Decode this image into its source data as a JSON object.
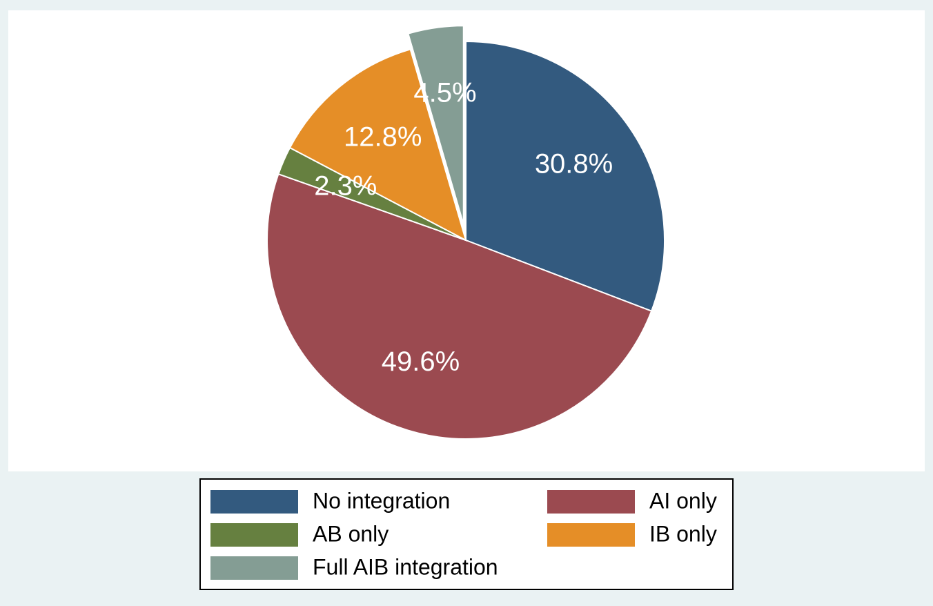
{
  "chart_data": {
    "type": "pie",
    "series": [
      {
        "name": "No integration",
        "color": "#335a7f",
        "values": [
          30.8
        ],
        "value_labels": [
          "30.8%"
        ]
      },
      {
        "name": "AI only",
        "color": "#9b4a50",
        "values": [
          49.6
        ],
        "value_labels": [
          "49.6%"
        ]
      },
      {
        "name": "AB only",
        "color": "#668040",
        "values": [
          2.3
        ],
        "value_labels": [
          "2.3%"
        ]
      },
      {
        "name": "IB only",
        "color": "#e58e27",
        "values": [
          12.8
        ],
        "value_labels": [
          "12.8%"
        ]
      },
      {
        "name": "Full AIB integration",
        "color": "#849d94",
        "values": [
          4.5
        ],
        "value_labels": [
          "4.5%"
        ]
      }
    ],
    "exploded": "Full AIB integration",
    "legend": "bottom"
  }
}
